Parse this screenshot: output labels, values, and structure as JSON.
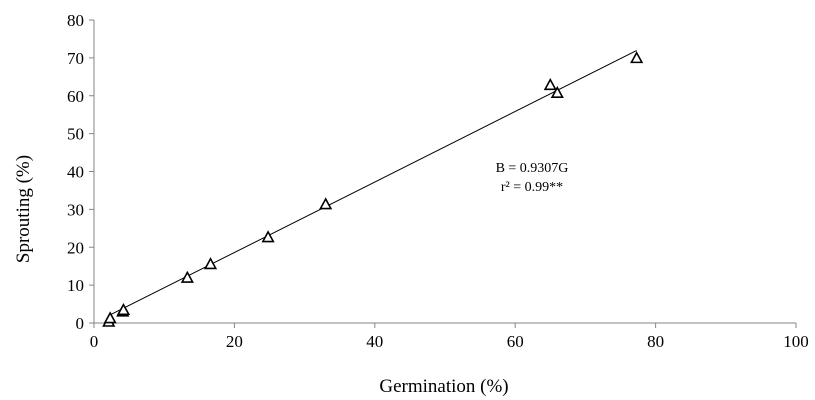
{
  "chart_data": {
    "type": "scatter",
    "title": "",
    "xlabel": "Germination (%)",
    "ylabel": "Sprouting (%)",
    "xlim": [
      0,
      100
    ],
    "ylim": [
      0,
      80
    ],
    "xticks": [
      0,
      20,
      40,
      60,
      80,
      100
    ],
    "yticks": [
      0,
      10,
      20,
      30,
      40,
      50,
      60,
      70,
      80
    ],
    "xtick_labels": [
      "0",
      "20",
      "40",
      "60",
      "80",
      "100"
    ],
    "ytick_labels": [
      "0",
      "10",
      "20",
      "30",
      "40",
      "50",
      "60",
      "70",
      "80"
    ],
    "grid": false,
    "legend": "none",
    "marker": "open-triangle",
    "points": [
      {
        "x": 2.1,
        "y": 0.3
      },
      {
        "x": 2.3,
        "y": 1.2
      },
      {
        "x": 4.1,
        "y": 3.0
      },
      {
        "x": 4.2,
        "y": 3.4
      },
      {
        "x": 13.3,
        "y": 11.9
      },
      {
        "x": 16.6,
        "y": 15.5
      },
      {
        "x": 24.8,
        "y": 22.6
      },
      {
        "x": 33.0,
        "y": 31.3
      },
      {
        "x": 65.0,
        "y": 62.8
      },
      {
        "x": 66.0,
        "y": 60.7
      },
      {
        "x": 77.3,
        "y": 69.9
      }
    ],
    "trendline": {
      "slope": 0.9307,
      "intercept": 0,
      "x_start": 2.1,
      "x_end": 77.3
    },
    "annotations": [
      "B = 0.9307G",
      "r² = 0.99**"
    ]
  }
}
